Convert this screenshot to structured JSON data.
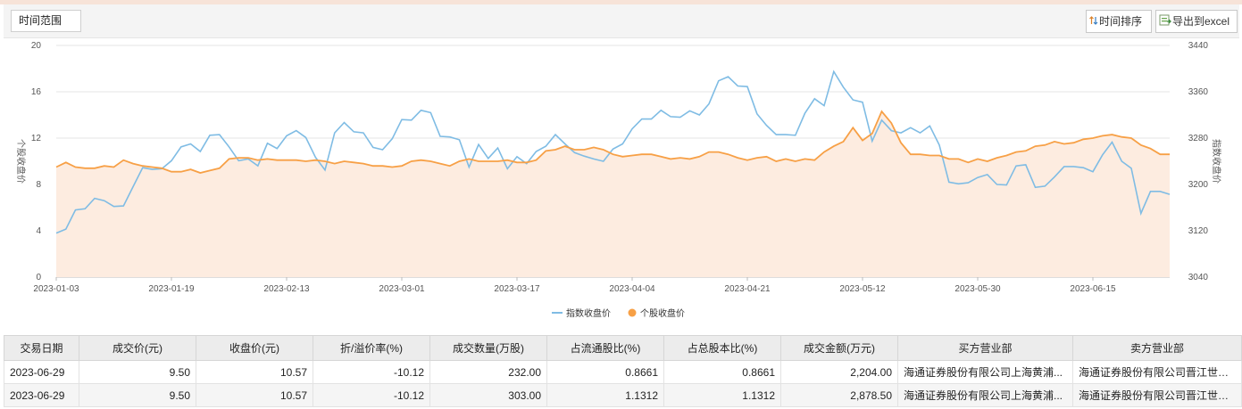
{
  "toolbar": {
    "range_select": "时间范围",
    "sort_label": "时间排序",
    "export_label": "导出到excel"
  },
  "chart_data": {
    "type": "line",
    "title": "",
    "x": [
      "2023-01-03",
      "2023-01-04",
      "2023-01-05",
      "2023-01-06",
      "2023-01-09",
      "2023-01-10",
      "2023-01-11",
      "2023-01-12",
      "2023-01-13",
      "2023-01-16",
      "2023-01-17",
      "2023-01-18",
      "2023-01-19",
      "2023-01-20",
      "2023-01-30",
      "2023-01-31",
      "2023-02-01",
      "2023-02-02",
      "2023-02-03",
      "2023-02-06",
      "2023-02-07",
      "2023-02-08",
      "2023-02-09",
      "2023-02-10",
      "2023-02-13",
      "2023-02-14",
      "2023-02-15",
      "2023-02-16",
      "2023-02-17",
      "2023-02-20",
      "2023-02-21",
      "2023-02-22",
      "2023-02-23",
      "2023-02-24",
      "2023-02-27",
      "2023-02-28",
      "2023-03-01",
      "2023-03-02",
      "2023-03-03",
      "2023-03-06",
      "2023-03-07",
      "2023-03-08",
      "2023-03-09",
      "2023-03-10",
      "2023-03-13",
      "2023-03-14",
      "2023-03-15",
      "2023-03-16",
      "2023-03-17",
      "2023-03-20",
      "2023-03-21",
      "2023-03-22",
      "2023-03-23",
      "2023-03-24",
      "2023-03-27",
      "2023-03-28",
      "2023-03-29",
      "2023-03-30",
      "2023-03-31",
      "2023-04-03",
      "2023-04-04",
      "2023-04-06",
      "2023-04-07",
      "2023-04-10",
      "2023-04-11",
      "2023-04-12",
      "2023-04-13",
      "2023-04-14",
      "2023-04-17",
      "2023-04-18",
      "2023-04-19",
      "2023-04-20",
      "2023-04-21",
      "2023-04-24",
      "2023-04-25",
      "2023-04-26",
      "2023-04-27",
      "2023-04-28",
      "2023-05-04",
      "2023-05-05",
      "2023-05-08",
      "2023-05-09",
      "2023-05-10",
      "2023-05-11",
      "2023-05-12",
      "2023-05-15",
      "2023-05-16",
      "2023-05-17",
      "2023-05-18",
      "2023-05-19",
      "2023-05-22",
      "2023-05-23",
      "2023-05-24",
      "2023-05-25",
      "2023-05-26",
      "2023-05-29",
      "2023-05-30",
      "2023-05-31",
      "2023-06-01",
      "2023-06-02",
      "2023-06-05",
      "2023-06-06",
      "2023-06-07",
      "2023-06-08",
      "2023-06-09",
      "2023-06-12",
      "2023-06-13",
      "2023-06-14",
      "2023-06-15",
      "2023-06-16",
      "2023-06-19",
      "2023-06-20",
      "2023-06-21",
      "2023-06-26",
      "2023-06-27",
      "2023-06-28",
      "2023-06-29"
    ],
    "x_ticks": [
      "2023-01-03",
      "2023-01-19",
      "2023-02-13",
      "2023-03-01",
      "2023-03-17",
      "2023-04-04",
      "2023-04-21",
      "2023-05-12",
      "2023-05-30",
      "2023-06-15"
    ],
    "ylim_left": [
      0,
      20
    ],
    "yticks_left": [
      0,
      4,
      8,
      12,
      16,
      20
    ],
    "ylabel_left": "个股收盘价",
    "ylim_right": [
      3040,
      3440
    ],
    "yticks_right": [
      3040,
      3120,
      3200,
      3280,
      3360,
      3440
    ],
    "ylabel_right": "指数收盘价",
    "grid": true,
    "legend_position": "bottom-center",
    "series": [
      {
        "name": "指数收盘价",
        "axis": "right",
        "color": "#7fbce4",
        "values": [
          3116,
          3123,
          3156,
          3158,
          3176,
          3172,
          3162,
          3163,
          3196,
          3229,
          3226,
          3227,
          3241,
          3265,
          3270,
          3257,
          3285,
          3286,
          3265,
          3241,
          3244,
          3232,
          3271,
          3262,
          3284,
          3293,
          3281,
          3247,
          3225,
          3289,
          3307,
          3291,
          3289,
          3264,
          3260,
          3279,
          3312,
          3311,
          3328,
          3324,
          3283,
          3282,
          3277,
          3230,
          3269,
          3245,
          3263,
          3227,
          3248,
          3236,
          3257,
          3266,
          3286,
          3270,
          3255,
          3249,
          3244,
          3240,
          3261,
          3270,
          3296,
          3313,
          3313,
          3328,
          3317,
          3316,
          3327,
          3320,
          3339,
          3379,
          3386,
          3370,
          3369,
          3322,
          3302,
          3286,
          3286,
          3285,
          3323,
          3348,
          3336,
          3395,
          3368,
          3346,
          3342,
          3275,
          3311,
          3293,
          3289,
          3298,
          3289,
          3301,
          3268,
          3204,
          3201,
          3203,
          3212,
          3217,
          3200,
          3199,
          3232,
          3234,
          3195,
          3197,
          3213,
          3231,
          3231,
          3229,
          3222,
          3251,
          3273,
          3240,
          3228,
          3150,
          3188,
          3188,
          3183
        ],
        "x_index_offset": 0
      },
      {
        "name": "个股收盘价",
        "axis": "left",
        "color": "#f7a046",
        "values": [
          9.5,
          9.9,
          9.5,
          9.4,
          9.4,
          9.6,
          9.5,
          10.1,
          9.8,
          9.6,
          9.5,
          9.4,
          9.1,
          9.1,
          9.3,
          9.0,
          9.2,
          9.4,
          10.2,
          10.3,
          10.3,
          10.1,
          10.2,
          10.1,
          10.1,
          10.1,
          10.0,
          10.1,
          10.0,
          9.8,
          10.0,
          9.9,
          9.8,
          9.6,
          9.6,
          9.5,
          9.6,
          10.0,
          10.1,
          10.0,
          9.8,
          9.6,
          10.0,
          10.2,
          10.0,
          10.0,
          10.0,
          10.1,
          9.9,
          9.9,
          10.1,
          10.9,
          11.0,
          11.3,
          11.0,
          11.0,
          11.2,
          11.0,
          10.6,
          10.4,
          10.5,
          10.6,
          10.6,
          10.4,
          10.2,
          10.3,
          10.2,
          10.4,
          10.8,
          10.8,
          10.6,
          10.3,
          10.1,
          10.3,
          10.4,
          10.0,
          10.2,
          10.0,
          10.2,
          10.1,
          10.8,
          11.3,
          11.7,
          12.9,
          11.8,
          12.4,
          14.3,
          13.3,
          11.6,
          10.6,
          10.6,
          10.5,
          10.5,
          10.2,
          10.2,
          9.9,
          10.2,
          10.0,
          10.3,
          10.5,
          10.8,
          10.9,
          11.3,
          11.4,
          11.7,
          11.5,
          11.6,
          11.9,
          12.0,
          12.2,
          12.3,
          12.1,
          12.0,
          11.4,
          11.1,
          10.6,
          10.6
        ]
      }
    ]
  },
  "table": {
    "headers": [
      "交易日期",
      "成交价(元)",
      "收盘价(元)",
      "折/溢价率(%)",
      "成交数量(万股)",
      "占流通股比(%)",
      "占总股本比(%)",
      "成交金额(万元)",
      "买方营业部",
      "卖方营业部"
    ],
    "rows": [
      [
        "2023-06-29",
        "9.50",
        "10.57",
        "-10.12",
        "232.00",
        "0.8661",
        "0.8661",
        "2,204.00",
        "海通证券股份有限公司上海黄浦...",
        "海通证券股份有限公司晋江世纪..."
      ],
      [
        "2023-06-29",
        "9.50",
        "10.57",
        "-10.12",
        "303.00",
        "1.1312",
        "1.1312",
        "2,878.50",
        "海通证券股份有限公司上海黄浦...",
        "海通证券股份有限公司晋江世纪..."
      ]
    ]
  }
}
